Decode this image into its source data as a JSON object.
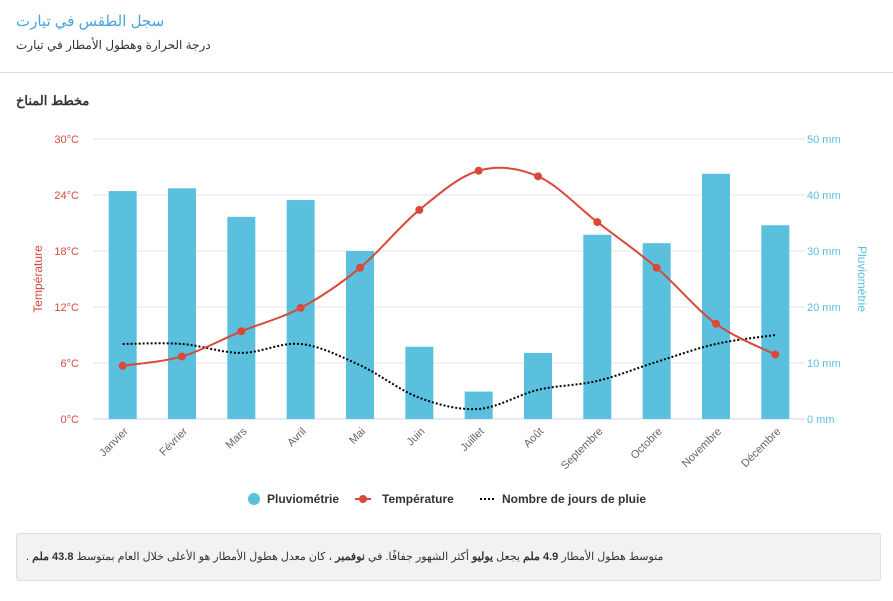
{
  "header": {
    "title": "سجل الطقس في تيارت",
    "subtitle": "درجة الحرارة وهطول الأمطار في تيارت"
  },
  "section_title": "مخطط المناخ",
  "chart_data": {
    "type": "bar+line",
    "categories": [
      "Janvier",
      "Février",
      "Mars",
      "Avril",
      "Mai",
      "Juin",
      "Juillet",
      "Août",
      "Septembre",
      "Octobre",
      "Novembre",
      "Décembre"
    ],
    "series": [
      {
        "name": "Pluviométrie",
        "type": "bar",
        "axis": "right",
        "color": "#5bc0de",
        "values": [
          40.7,
          41.2,
          36.1,
          39.1,
          30.0,
          12.9,
          4.9,
          11.8,
          32.9,
          31.4,
          43.8,
          34.6
        ]
      },
      {
        "name": "Température",
        "type": "line",
        "axis": "left",
        "color": "#d9493a",
        "values": [
          5.7,
          6.7,
          9.4,
          11.9,
          16.2,
          22.4,
          26.6,
          26.0,
          21.1,
          16.2,
          10.2,
          6.9
        ]
      },
      {
        "name": "Nombre de jours de pluie",
        "type": "dotted-line",
        "axis": "right",
        "color": "#000000",
        "values": [
          13.4,
          13.4,
          11.8,
          13.4,
          9.6,
          3.8,
          1.8,
          5.2,
          6.8,
          10.2,
          13.4,
          15.0
        ]
      }
    ],
    "left_axis": {
      "label": "Température",
      "ticks": [
        "0°C",
        "6°C",
        "12°C",
        "18°C",
        "24°C",
        "30°C"
      ],
      "range": [
        0,
        30
      ],
      "color": "#d9493a"
    },
    "right_axis": {
      "label": "Pluviométrie",
      "ticks": [
        "0 mm",
        "10 mm",
        "20 mm",
        "30 mm",
        "40 mm",
        "50 mm"
      ],
      "range": [
        0,
        50
      ],
      "color": "#5bc0de"
    },
    "legend_position": "bottom"
  },
  "note": {
    "p1": "متوسط هطول الأمطار ",
    "v1": "4.9 ملم",
    "p2": " يجعل ",
    "m1": "يوليو",
    "p3": " أكثر الشهور جفافًا. في ",
    "m2": "نوفمبر",
    "p4": " ، كان معدل هطول الأمطار هو الأعلى خلال العام بمتوسط ",
    "v2": "43.8 ملم",
    "p5": " ."
  }
}
